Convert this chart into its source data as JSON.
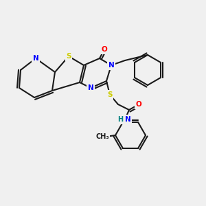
{
  "bg_color": "#f0f0f0",
  "atom_colors": {
    "C": "#1a1a1a",
    "N": "#0000ff",
    "O": "#ff0000",
    "S": "#cccc00",
    "H": "#008080"
  },
  "figsize": [
    3.0,
    3.0
  ],
  "dpi": 100,
  "lw": 1.5,
  "fs": 7.5
}
